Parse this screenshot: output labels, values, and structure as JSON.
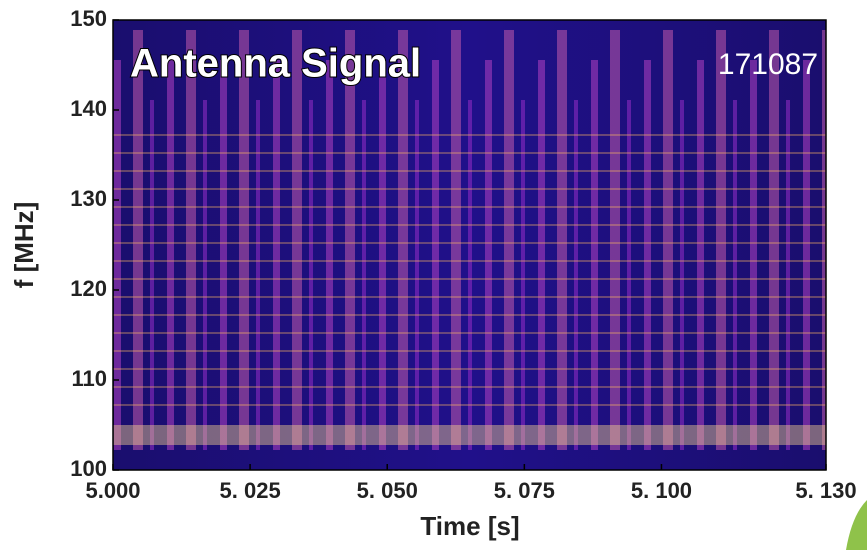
{
  "chart_data": {
    "type": "spectrogram",
    "title": "Antenna Signal",
    "annotation": "171087",
    "xlabel": "Time [s]",
    "ylabel": "f [MHz]",
    "xlim": [
      5.0,
      5.13
    ],
    "xticks": [
      {
        "value": 5.0,
        "label": "5.000"
      },
      {
        "value": 5.025,
        "label": "5. 025"
      },
      {
        "value": 5.05,
        "label": "5. 050"
      },
      {
        "value": 5.075,
        "label": "5. 075"
      },
      {
        "value": 5.1,
        "label": "5. 100"
      },
      {
        "value": 5.13,
        "label": "5. 130"
      }
    ],
    "ylim": [
      100,
      150
    ],
    "yticks": [
      100,
      110,
      120,
      130,
      140,
      150
    ]
  }
}
